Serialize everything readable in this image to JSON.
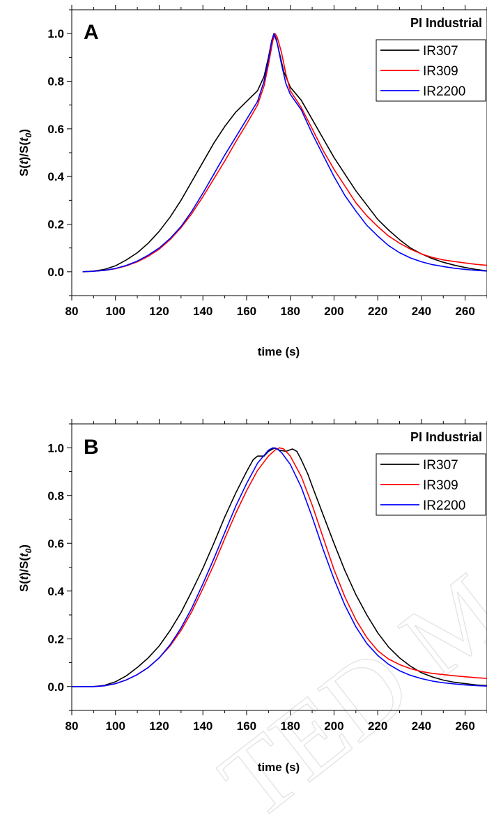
{
  "watermark": "TED MANUSCRIPT",
  "chart_data": [
    {
      "type": "line",
      "panel_label": "A",
      "legend_title": "PI Industrial",
      "xlabel": "time (s)",
      "ylabel": [
        "S(",
        "t",
        ")/S(",
        "t",
        "0",
        ")"
      ],
      "xlim": [
        80,
        270
      ],
      "ylim": [
        -0.1,
        1.1
      ],
      "xticks": [
        80,
        100,
        120,
        140,
        160,
        180,
        200,
        220,
        240,
        260
      ],
      "xtick_labels": [
        "80",
        "100",
        "120",
        "140",
        "160",
        "180",
        "200",
        "220",
        "240",
        "260"
      ],
      "yticks": [
        0.0,
        0.2,
        0.4,
        0.6,
        0.8,
        1.0
      ],
      "ytick_labels": [
        "0.0",
        "0.2",
        "0.4",
        "0.6",
        "0.8",
        "1.0"
      ],
      "grid": false,
      "legend_position": "top-right",
      "series": [
        {
          "name": "IR307",
          "color": "#000000",
          "x": [
            85,
            90,
            95,
            100,
            105,
            110,
            115,
            120,
            125,
            130,
            135,
            140,
            145,
            150,
            155,
            160,
            165,
            168,
            170,
            171.5,
            172.5,
            173.5,
            175,
            177,
            180,
            185,
            190,
            195,
            200,
            205,
            210,
            215,
            220,
            225,
            230,
            235,
            240,
            245,
            250,
            255,
            260,
            265,
            270
          ],
          "y": [
            0.0,
            0.003,
            0.01,
            0.025,
            0.05,
            0.08,
            0.12,
            0.17,
            0.23,
            0.3,
            0.38,
            0.46,
            0.54,
            0.61,
            0.67,
            0.715,
            0.76,
            0.82,
            0.9,
            0.97,
            1.0,
            0.98,
            0.92,
            0.84,
            0.775,
            0.72,
            0.64,
            0.56,
            0.48,
            0.41,
            0.34,
            0.28,
            0.22,
            0.175,
            0.135,
            0.1,
            0.075,
            0.055,
            0.04,
            0.028,
            0.018,
            0.01,
            0.004
          ]
        },
        {
          "name": "IR309",
          "color": "#ff0000",
          "x": [
            85,
            90,
            95,
            100,
            105,
            110,
            115,
            120,
            125,
            130,
            135,
            140,
            145,
            150,
            155,
            160,
            165,
            168,
            170,
            172,
            173,
            174,
            176,
            178,
            180,
            185,
            190,
            195,
            200,
            205,
            210,
            215,
            220,
            225,
            230,
            235,
            240,
            245,
            250,
            255,
            260,
            265,
            270
          ],
          "y": [
            0.0,
            0.002,
            0.006,
            0.013,
            0.025,
            0.042,
            0.065,
            0.095,
            0.135,
            0.185,
            0.245,
            0.315,
            0.39,
            0.465,
            0.545,
            0.62,
            0.7,
            0.78,
            0.87,
            0.97,
            1.0,
            0.985,
            0.92,
            0.83,
            0.76,
            0.69,
            0.6,
            0.51,
            0.43,
            0.36,
            0.29,
            0.235,
            0.19,
            0.15,
            0.12,
            0.095,
            0.075,
            0.06,
            0.05,
            0.043,
            0.037,
            0.031,
            0.027
          ]
        },
        {
          "name": "IR2200",
          "color": "#0000ff",
          "x": [
            85,
            90,
            95,
            100,
            105,
            110,
            115,
            120,
            125,
            130,
            135,
            140,
            145,
            150,
            155,
            160,
            165,
            168,
            170,
            171.5,
            172.5,
            174,
            176,
            178,
            180,
            185,
            190,
            195,
            200,
            205,
            210,
            215,
            220,
            225,
            230,
            235,
            240,
            245,
            250,
            255,
            260,
            265,
            270
          ],
          "y": [
            0.0,
            0.002,
            0.006,
            0.014,
            0.027,
            0.045,
            0.07,
            0.1,
            0.14,
            0.19,
            0.255,
            0.33,
            0.41,
            0.49,
            0.565,
            0.64,
            0.715,
            0.8,
            0.89,
            0.97,
            1.0,
            0.96,
            0.87,
            0.79,
            0.745,
            0.68,
            0.58,
            0.49,
            0.4,
            0.32,
            0.255,
            0.195,
            0.15,
            0.11,
            0.08,
            0.058,
            0.042,
            0.03,
            0.022,
            0.015,
            0.01,
            0.006,
            0.003
          ]
        }
      ]
    },
    {
      "type": "line",
      "panel_label": "B",
      "legend_title": "PI Industrial",
      "xlabel": "time (s)",
      "ylabel": [
        "S(",
        "t",
        ")/S(",
        "t",
        "0",
        ")"
      ],
      "xlim": [
        80,
        270
      ],
      "ylim": [
        -0.1,
        1.1
      ],
      "xticks": [
        80,
        100,
        120,
        140,
        160,
        180,
        200,
        220,
        240,
        260
      ],
      "xtick_labels": [
        "80",
        "100",
        "120",
        "140",
        "160",
        "180",
        "200",
        "220",
        "240",
        "260"
      ],
      "yticks": [
        0.0,
        0.2,
        0.4,
        0.6,
        0.8,
        1.0
      ],
      "ytick_labels": [
        "0.0",
        "0.2",
        "0.4",
        "0.6",
        "0.8",
        "1.0"
      ],
      "grid": false,
      "legend_position": "top-right",
      "series": [
        {
          "name": "IR307",
          "color": "#000000",
          "x": [
            80,
            85,
            90,
            95,
            100,
            105,
            110,
            115,
            120,
            125,
            130,
            135,
            140,
            145,
            150,
            155,
            160,
            163,
            165,
            168,
            170,
            173,
            175,
            178,
            181,
            183,
            185,
            188,
            190,
            195,
            200,
            205,
            210,
            215,
            220,
            225,
            230,
            235,
            240,
            245,
            250,
            255,
            260,
            265,
            270
          ],
          "y": [
            0.0,
            0.0,
            0.0,
            0.005,
            0.02,
            0.045,
            0.08,
            0.12,
            0.17,
            0.235,
            0.31,
            0.4,
            0.495,
            0.6,
            0.71,
            0.81,
            0.9,
            0.95,
            0.965,
            0.965,
            0.985,
            1.0,
            0.99,
            0.985,
            0.995,
            0.985,
            0.95,
            0.89,
            0.84,
            0.72,
            0.6,
            0.485,
            0.385,
            0.3,
            0.225,
            0.165,
            0.12,
            0.085,
            0.058,
            0.04,
            0.027,
            0.018,
            0.012,
            0.007,
            0.004
          ]
        },
        {
          "name": "IR309",
          "color": "#ff0000",
          "x": [
            80,
            85,
            90,
            95,
            100,
            105,
            110,
            115,
            120,
            125,
            130,
            135,
            140,
            145,
            150,
            155,
            160,
            165,
            170,
            173,
            175,
            177,
            180,
            185,
            190,
            195,
            200,
            205,
            210,
            215,
            220,
            225,
            230,
            235,
            240,
            245,
            250,
            255,
            260,
            265,
            270
          ],
          "y": [
            0.0,
            0.0,
            0.0,
            0.003,
            0.012,
            0.028,
            0.05,
            0.08,
            0.12,
            0.17,
            0.235,
            0.315,
            0.41,
            0.51,
            0.62,
            0.725,
            0.82,
            0.905,
            0.965,
            0.99,
            1.0,
            0.995,
            0.965,
            0.88,
            0.76,
            0.625,
            0.49,
            0.375,
            0.28,
            0.205,
            0.15,
            0.115,
            0.092,
            0.075,
            0.063,
            0.055,
            0.05,
            0.045,
            0.041,
            0.037,
            0.034
          ]
        },
        {
          "name": "IR2200",
          "color": "#0000ff",
          "x": [
            80,
            85,
            90,
            95,
            100,
            105,
            110,
            115,
            120,
            125,
            130,
            135,
            140,
            145,
            150,
            155,
            160,
            165,
            170,
            172,
            174,
            176,
            180,
            185,
            190,
            195,
            200,
            205,
            210,
            215,
            220,
            225,
            230,
            235,
            240,
            245,
            250,
            255,
            260,
            265,
            270
          ],
          "y": [
            0.0,
            0.0,
            0.0,
            0.003,
            0.012,
            0.028,
            0.05,
            0.08,
            0.12,
            0.175,
            0.245,
            0.33,
            0.43,
            0.535,
            0.645,
            0.755,
            0.85,
            0.935,
            0.99,
            1.0,
            0.995,
            0.98,
            0.93,
            0.835,
            0.71,
            0.575,
            0.45,
            0.34,
            0.25,
            0.18,
            0.13,
            0.093,
            0.066,
            0.047,
            0.033,
            0.023,
            0.016,
            0.011,
            0.007,
            0.004,
            0.002
          ]
        }
      ]
    }
  ]
}
